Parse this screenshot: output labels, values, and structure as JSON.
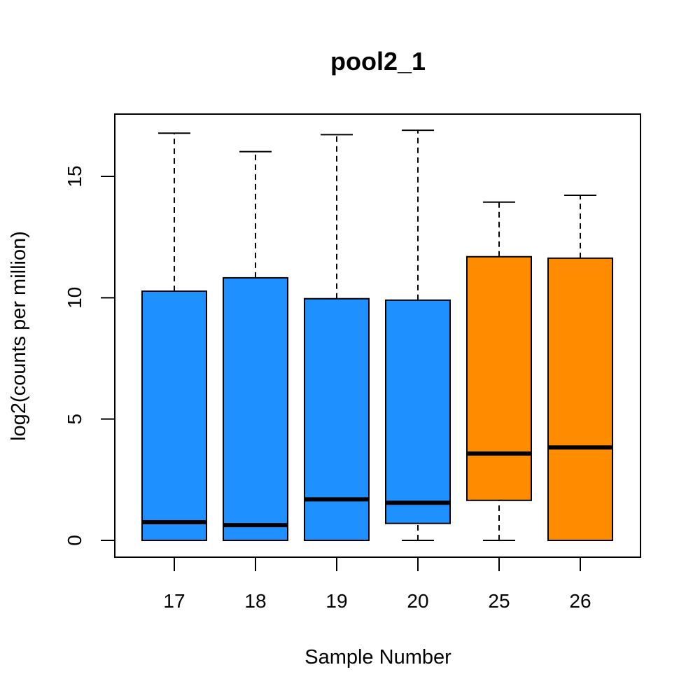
{
  "chart_data": {
    "type": "boxplot",
    "title": "pool2_1",
    "xlabel": "Sample Number",
    "ylabel": "log2(counts per million)",
    "ylim": [
      -0.7,
      17.6
    ],
    "yticks": [
      0,
      5,
      10,
      15
    ],
    "grid": false,
    "categories": [
      "17",
      "18",
      "19",
      "20",
      "25",
      "26"
    ],
    "boxes": [
      {
        "min": 0.0,
        "q1": 0.0,
        "median": 0.75,
        "q3": 10.27,
        "max": 16.78,
        "color": "#1E90FF"
      },
      {
        "min": 0.0,
        "q1": 0.0,
        "median": 0.63,
        "q3": 10.82,
        "max": 16.02,
        "color": "#1E90FF"
      },
      {
        "min": 0.0,
        "q1": 0.0,
        "median": 1.69,
        "q3": 9.96,
        "max": 16.72,
        "color": "#1E90FF"
      },
      {
        "min": 0.0,
        "q1": 0.7,
        "median": 1.55,
        "q3": 9.9,
        "max": 16.9,
        "color": "#1E90FF"
      },
      {
        "min": 0.0,
        "q1": 1.65,
        "median": 3.58,
        "q3": 11.69,
        "max": 13.94,
        "color": "#FF8C00"
      },
      {
        "min": 0.0,
        "q1": 0.0,
        "median": 3.83,
        "q3": 11.63,
        "max": 14.22,
        "color": "#FF8C00"
      }
    ]
  }
}
